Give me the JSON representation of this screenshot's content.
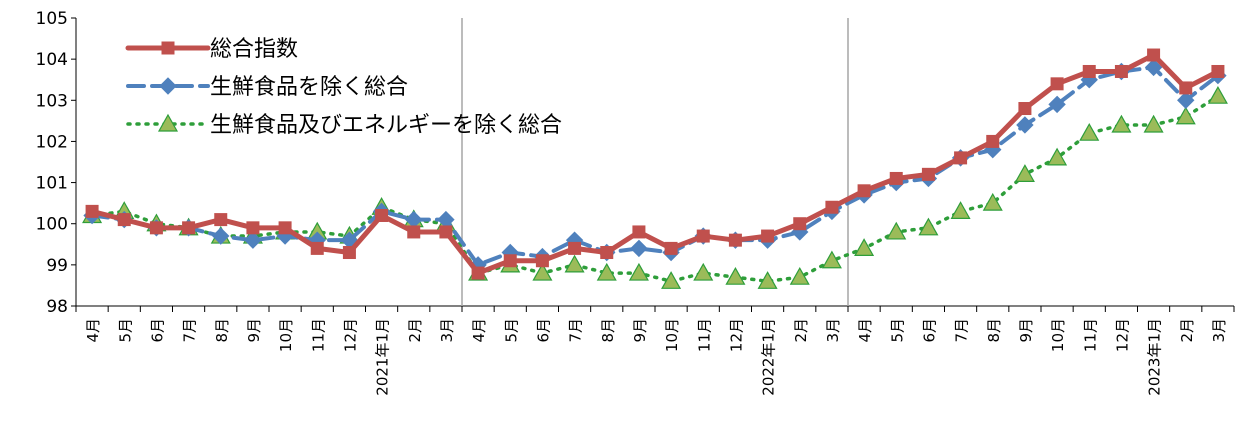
{
  "chart_data": {
    "type": "line",
    "title": "",
    "xlabel": "",
    "ylabel": "",
    "ylim": [
      98,
      105
    ],
    "yticks": [
      98,
      99,
      100,
      101,
      102,
      103,
      104,
      105
    ],
    "categories": [
      "4月",
      "5月",
      "6月",
      "7月",
      "8月",
      "9月",
      "10月",
      "11月",
      "12月",
      "2021年1月",
      "2月",
      "3月",
      "4月",
      "5月",
      "6月",
      "7月",
      "8月",
      "9月",
      "10月",
      "11月",
      "12月",
      "2022年1月",
      "2月",
      "3月",
      "4月",
      "5月",
      "6月",
      "7月",
      "8月",
      "9月",
      "10月",
      "11月",
      "12月",
      "2023年1月",
      "2月",
      "3月"
    ],
    "grid": false,
    "legend_position": "top-left",
    "series": [
      {
        "name": "総合指数",
        "color": "#C0504D",
        "style": "solid",
        "marker": "square",
        "values": [
          100.3,
          100.1,
          99.9,
          99.9,
          100.1,
          99.9,
          99.9,
          99.4,
          99.3,
          100.2,
          99.8,
          99.8,
          98.8,
          99.1,
          99.1,
          99.4,
          99.3,
          99.8,
          99.4,
          99.7,
          99.6,
          99.7,
          100.0,
          100.4,
          100.8,
          101.1,
          101.2,
          101.6,
          102.0,
          102.8,
          103.4,
          103.7,
          103.7,
          104.1,
          103.3,
          103.7
        ]
      },
      {
        "name": "生鮮食品を除く総合",
        "color": "#4F81BD",
        "style": "dashed",
        "marker": "diamond",
        "values": [
          100.2,
          100.1,
          99.9,
          99.9,
          99.7,
          99.6,
          99.7,
          99.6,
          99.6,
          100.3,
          100.1,
          100.1,
          99.0,
          99.3,
          99.2,
          99.6,
          99.3,
          99.4,
          99.3,
          99.7,
          99.6,
          99.6,
          99.8,
          100.3,
          100.7,
          101.0,
          101.1,
          101.6,
          101.8,
          102.4,
          102.9,
          103.5,
          103.7,
          103.8,
          103.0,
          103.6
        ]
      },
      {
        "name": "生鮮食品及びエネルギーを除く総合",
        "color": "#2E9E3A",
        "fill": "#9BBB59",
        "style": "dotted",
        "marker": "triangle",
        "values": [
          100.2,
          100.3,
          100.0,
          99.9,
          99.7,
          99.7,
          99.8,
          99.8,
          99.7,
          100.4,
          100.1,
          100.0,
          98.8,
          99.0,
          98.8,
          99.0,
          98.8,
          98.8,
          98.6,
          98.8,
          98.7,
          98.6,
          98.7,
          99.1,
          99.4,
          99.8,
          99.9,
          100.3,
          100.5,
          101.2,
          101.6,
          102.2,
          102.4,
          102.4,
          102.6,
          103.1
        ]
      }
    ]
  }
}
